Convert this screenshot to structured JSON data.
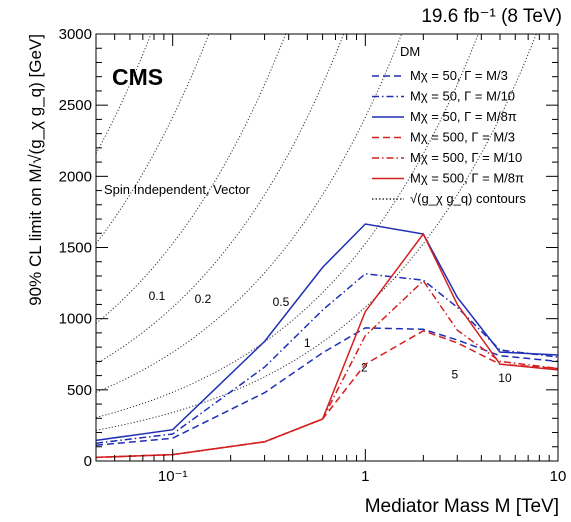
{
  "chart_data": {
    "type": "line",
    "lumi_label": "19.6 fb⁻¹ (8 TeV)",
    "experiment_label": "CMS",
    "annotation": "Spin Independent, Vector",
    "xlabel": "Mediator Mass M [TeV]",
    "ylabel": "90% CL limit on M/√(g_χ g_q) [GeV]",
    "xscale": "log",
    "xlim": [
      0.04,
      10
    ],
    "ylim": [
      0,
      3000
    ],
    "x_ticks": [
      {
        "value": 0.1,
        "label": "10⁻¹"
      },
      {
        "value": 1,
        "label": "1"
      },
      {
        "value": 10,
        "label": "10"
      }
    ],
    "y_ticks": [
      {
        "value": 0,
        "label": "0"
      },
      {
        "value": 500,
        "label": "500"
      },
      {
        "value": 1000,
        "label": "1000"
      },
      {
        "value": 1500,
        "label": "1500"
      },
      {
        "value": 2000,
        "label": "2000"
      },
      {
        "value": 2500,
        "label": "2500"
      },
      {
        "value": 3000,
        "label": "3000"
      }
    ],
    "grid": false,
    "legend_title": "DM",
    "legend_position": "top-right",
    "colors": {
      "blue": "#1f2fb5",
      "red": "#d42020",
      "gray": "#555555"
    },
    "series": [
      {
        "name": "Mχ = 50, Γ = M/3",
        "color": "#1f2fb5",
        "style": "dashed",
        "x": [
          0.04,
          0.1,
          0.3,
          0.6,
          1.0,
          2.0,
          3.0,
          5.0,
          10.0
        ],
        "y": [
          110,
          160,
          480,
          760,
          935,
          925,
          850,
          740,
          700
        ]
      },
      {
        "name": "Mχ = 50, Γ = M/10",
        "color": "#1f2fb5",
        "style": "dashdot",
        "x": [
          0.04,
          0.1,
          0.3,
          0.6,
          1.0,
          2.0,
          3.0,
          5.0,
          10.0
        ],
        "y": [
          125,
          190,
          660,
          1060,
          1315,
          1270,
          1080,
          780,
          730
        ]
      },
      {
        "name": "Mχ = 50, Γ = M/8π",
        "color": "#1f2fb5",
        "style": "solid",
        "x": [
          0.04,
          0.1,
          0.3,
          0.6,
          1.0,
          2.0,
          3.0,
          5.0,
          10.0
        ],
        "y": [
          145,
          220,
          840,
          1360,
          1665,
          1595,
          1150,
          765,
          745
        ]
      },
      {
        "name": "Mχ = 500, Γ = M/3",
        "color": "#d42020",
        "style": "dashed",
        "x": [
          0.04,
          0.1,
          0.3,
          0.6,
          1.0,
          2.0,
          3.0,
          5.0,
          10.0
        ],
        "y": [
          25,
          45,
          135,
          295,
          680,
          915,
          830,
          680,
          650
        ]
      },
      {
        "name": "Mχ = 500, Γ = M/10",
        "color": "#d42020",
        "style": "dashdot",
        "x": [
          0.04,
          0.1,
          0.3,
          0.6,
          1.0,
          2.0,
          3.0,
          5.0,
          10.0
        ],
        "y": [
          25,
          45,
          135,
          295,
          880,
          1265,
          920,
          700,
          650
        ]
      },
      {
        "name": "Mχ = 500, Γ = M/8π",
        "color": "#d42020",
        "style": "solid",
        "x": [
          0.04,
          0.1,
          0.3,
          0.6,
          1.0,
          2.0,
          3.0,
          5.0,
          10.0
        ],
        "y": [
          25,
          45,
          135,
          295,
          1050,
          1595,
          1100,
          680,
          640
        ]
      }
    ],
    "contour_legend": "√(g_χ g_q) contours",
    "contours": [
      {
        "label": "0.1",
        "coupling": 0.1
      },
      {
        "label": "0.2",
        "coupling": 0.2
      },
      {
        "label": "0.5",
        "coupling": 0.5
      },
      {
        "label": "1",
        "coupling": 1
      },
      {
        "label": "2",
        "coupling": 2
      },
      {
        "label": "5",
        "coupling": 5
      },
      {
        "label": "10",
        "coupling": 10
      }
    ]
  }
}
